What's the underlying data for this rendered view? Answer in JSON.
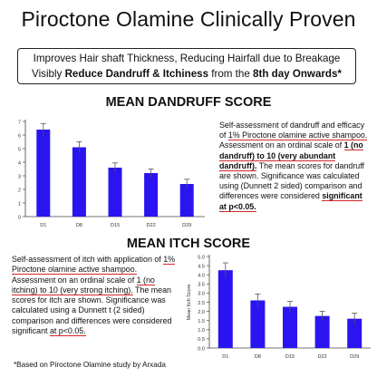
{
  "headline": "Piroctone Olamine Clinically Proven",
  "claim": {
    "line1": "Improves Hair shaft Thickness, Reducing Hairfall due to Breakage",
    "line2_pre": "Visibly ",
    "line2_bold1": "Reduce Dandruff & Itchiness",
    "line2_mid": " from the ",
    "line2_bold2": "8th day Onwards*"
  },
  "dandruff_section": {
    "title": "MEAN DANDRUFF SCORE",
    "note": {
      "t1": "Self-assessment of dandruff and efficacy of ",
      "t2": "1% Piroctone olamine active shampoo.",
      "t3": " Assessment on an ordinal scale of ",
      "t4": "1 (no dandruff) to 10 (very abundant dandruff).",
      "t5": " The mean scores for dandruff are shown. Significance was calculated using (Dunnett 2 sided) comparison and differences were considered ",
      "t6": "significant at p<0.05."
    }
  },
  "itch_section": {
    "title": "MEAN ITCH SCORE",
    "note": {
      "t1": "Self-assessment of itch with application of ",
      "t2": "1% Piroctone olamine active shampoo.",
      "t3": " Assessment on an ordinal scale of ",
      "t4": "1 (no itching) to 10 (very strong itching).",
      "t5": " The mean scores for itch are shown. Significance was calculated using a Dunnett t (2 sided) comparison and differences were considered significant ",
      "t6": "at p<0.05."
    }
  },
  "footnote": "*Based on Piroctone Olamine study by Arxada",
  "chart_data": [
    {
      "type": "bar",
      "title": "MEAN DANDRUFF SCORE",
      "categories": [
        "D1",
        "D8",
        "D15",
        "D22",
        "D29"
      ],
      "values": [
        6.4,
        5.1,
        3.6,
        3.2,
        2.4
      ],
      "errors": [
        0.45,
        0.4,
        0.35,
        0.3,
        0.35
      ],
      "ylim": [
        0,
        7
      ],
      "yticks": [
        0,
        1,
        2,
        3,
        4,
        5,
        6,
        7
      ],
      "xlabel": "",
      "ylabel": "",
      "bar_color": "#2a14f0"
    },
    {
      "type": "bar",
      "title": "MEAN ITCH SCORE",
      "categories": [
        "D1",
        "D8",
        "D15",
        "D22",
        "D29"
      ],
      "values": [
        4.25,
        2.6,
        2.25,
        1.75,
        1.6
      ],
      "errors": [
        0.4,
        0.35,
        0.3,
        0.25,
        0.3
      ],
      "ylim": [
        0,
        5
      ],
      "yticks": [
        "0.0",
        "0.5",
        "1.0",
        "1.5",
        "2.0",
        "2.5",
        "3.0",
        "3.5",
        "4.0",
        "4.5",
        "5.0"
      ],
      "xlabel": "",
      "ylabel": "Mean Itch Score",
      "bar_color": "#2a14f0"
    }
  ]
}
